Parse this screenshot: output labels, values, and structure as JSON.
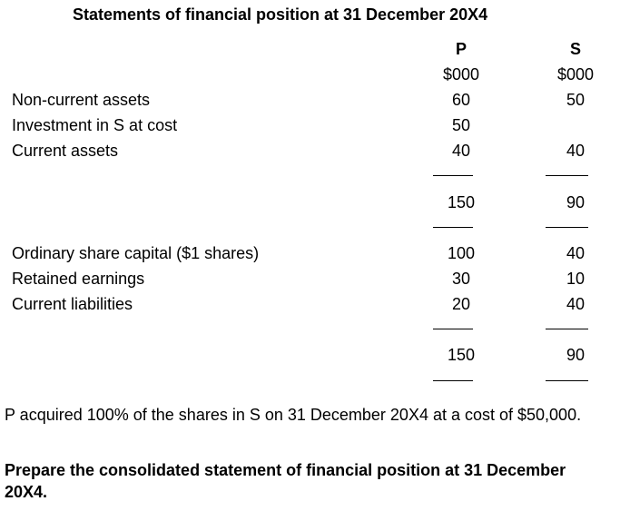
{
  "title": "Statements of financial position at 31 December 20X4",
  "columns": {
    "p_header": "P",
    "s_header": "S",
    "p_unit": "$000",
    "s_unit": "$000"
  },
  "assets": [
    {
      "label": "Non-current assets",
      "p": "60",
      "s": "50"
    },
    {
      "label": "Investment in S at cost",
      "p": "50",
      "s": ""
    },
    {
      "label": "Current assets",
      "p": "40",
      "s": "40"
    }
  ],
  "assets_total": {
    "p": "150",
    "s": "90"
  },
  "equity_liabilities": [
    {
      "label": "Ordinary share capital ($1 shares)",
      "p": "100",
      "s": "40"
    },
    {
      "label": "Retained earnings",
      "p": "30",
      "s": "10"
    },
    {
      "label": "Current liabilities",
      "p": "20",
      "s": "40"
    }
  ],
  "equity_liabilities_total": {
    "p": "150",
    "s": "90"
  },
  "note": "P acquired 100% of the shares in S on 31 December 20X4 at a cost of $50,000.",
  "instruction": "Prepare the consolidated statement of financial position at 31 December 20X4."
}
